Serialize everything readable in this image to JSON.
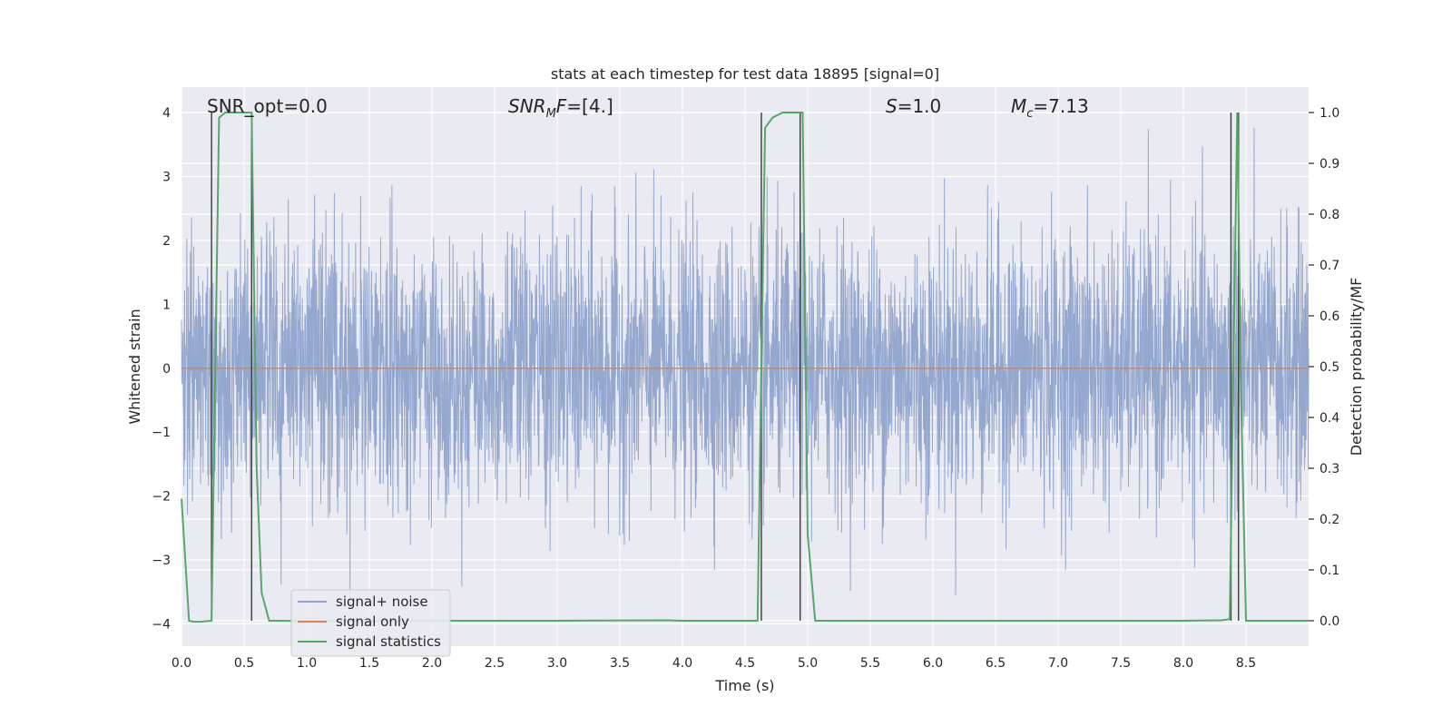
{
  "chart_data": {
    "type": "line",
    "title": "stats at each timestep for test data 18895 [signal=0]",
    "xlabel": "Time (s)",
    "ylabel": "Whitened strain",
    "y2label": "Detection probability/MF",
    "xlim": [
      0,
      9.0
    ],
    "ylim": [
      -4.35,
      4.4
    ],
    "y2lim": [
      -0.05,
      1.05
    ],
    "x_ticks": [
      0.0,
      0.5,
      1.0,
      1.5,
      2.0,
      2.5,
      3.0,
      3.5,
      4.0,
      4.5,
      5.0,
      5.5,
      6.0,
      6.5,
      7.0,
      7.5,
      8.0,
      8.5
    ],
    "x_tick_labels": [
      "0.0",
      "0.5",
      "1.0",
      "1.5",
      "2.0",
      "2.5",
      "3.0",
      "3.5",
      "4.0",
      "4.5",
      "5.0",
      "5.5",
      "6.0",
      "6.5",
      "7.0",
      "7.5",
      "8.0",
      "8.5"
    ],
    "y_ticks": [
      4,
      3,
      2,
      1,
      0,
      -1,
      -2,
      -3,
      -4
    ],
    "y_tick_labels": [
      "4",
      "3",
      "2",
      "1",
      "0",
      "−1",
      "−2",
      "−3",
      "−4"
    ],
    "y2_ticks": [
      1.0,
      0.9,
      0.8,
      0.7,
      0.6,
      0.5,
      0.4,
      0.3,
      0.2,
      0.1,
      0.0
    ],
    "y2_tick_labels": [
      "1.0",
      "0.9",
      "0.8",
      "0.7",
      "0.6",
      "0.5",
      "0.4",
      "0.3",
      "0.2",
      "0.1",
      "0.0"
    ],
    "grid": true,
    "legend_position": "lower-left",
    "annotations": {
      "snr_opt": "SNR_opt=0.0",
      "snr_mf": "=[4.]",
      "s_val": "=1.0",
      "mc_val": "=7.13"
    },
    "series": [
      {
        "name": "signal+ noise",
        "axis": "left",
        "color": "#8fa3cc",
        "description_range": [
          -4.0,
          4.0
        ]
      },
      {
        "name": "signal only",
        "axis": "left",
        "color": "#dd8452",
        "constant": 0
      },
      {
        "name": "signal statistics",
        "axis": "right",
        "color": "#55a868",
        "x": [
          0.0,
          0.06,
          0.1,
          0.15,
          0.24,
          0.27,
          0.3,
          0.35,
          0.4,
          0.45,
          0.52,
          0.56,
          0.6,
          0.64,
          0.7,
          0.8,
          1.0,
          2.0,
          3.0,
          3.87,
          4.0,
          4.5,
          4.6,
          4.63,
          4.66,
          4.72,
          4.8,
          4.9,
          4.96,
          5.0,
          5.06,
          5.2,
          6.0,
          7.0,
          8.0,
          8.3,
          8.37,
          8.4,
          8.43,
          8.46,
          8.5,
          8.6,
          9.0
        ],
        "y": [
          0.24,
          0.0,
          -0.002,
          -0.002,
          0.0,
          0.5,
          0.99,
          1.0,
          1.0,
          1.0,
          1.0,
          1.0,
          0.3,
          0.055,
          0.0,
          0.0,
          -0.001,
          0.0,
          0.0,
          0.001,
          0.0,
          0.0,
          0.0,
          0.5,
          0.97,
          0.99,
          1.0,
          1.0,
          1.0,
          0.17,
          0.0,
          0.0,
          0.0,
          0.0,
          0.0,
          0.001,
          0.003,
          0.5,
          1.0,
          0.45,
          0.0,
          0.0,
          0.0
        ]
      }
    ],
    "vertical_markers": [
      0.24,
      0.56,
      4.63,
      4.94,
      8.38,
      8.44
    ],
    "colors": {
      "plot_bg": "#eaeaf2",
      "grid": "#ffffff",
      "noise": "#8fa3cc",
      "signal": "#dd8452",
      "stats": "#55a868",
      "marker": "#444444"
    }
  }
}
